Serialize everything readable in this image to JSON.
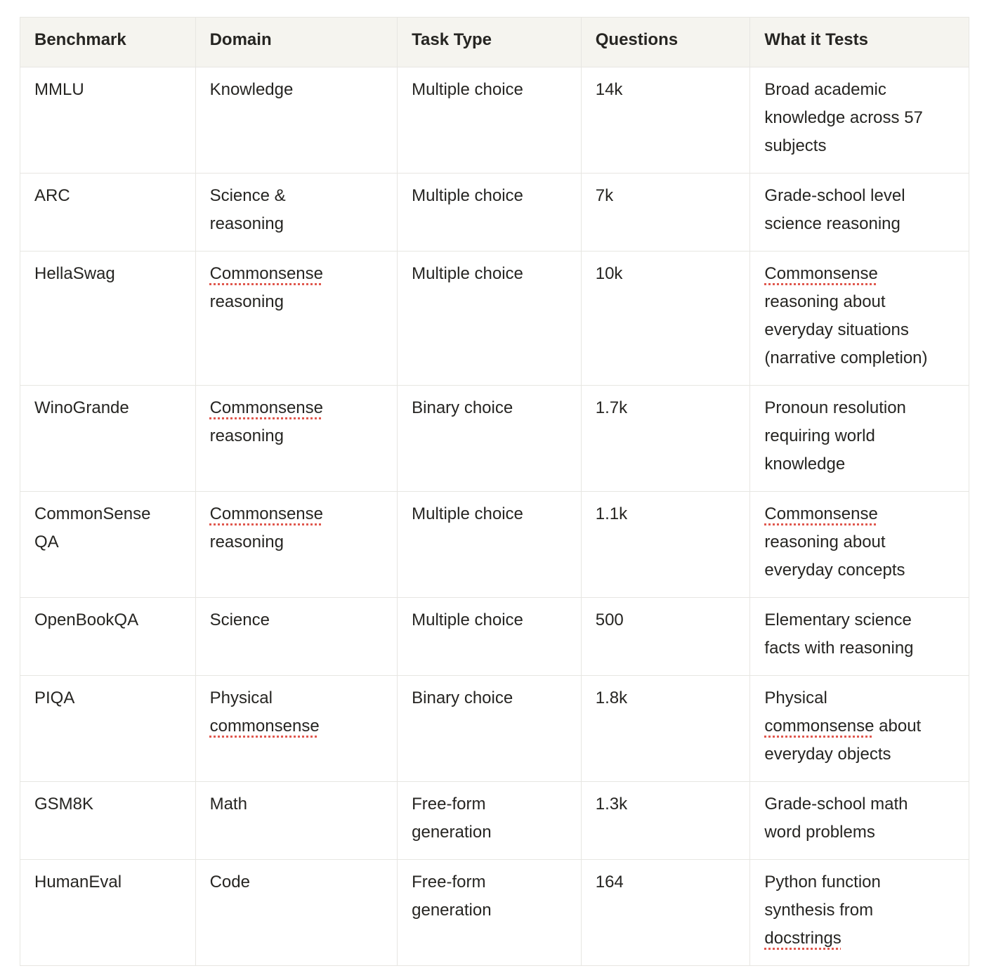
{
  "colors": {
    "page_background": "#ffffff",
    "header_background": "#f5f4ef",
    "cell_border": "#e7e6e2",
    "text": "#262522",
    "misspell_underline": "#e0584e"
  },
  "table": {
    "columns": [
      {
        "key": "benchmark",
        "label": "Benchmark"
      },
      {
        "key": "domain",
        "label": "Domain"
      },
      {
        "key": "task-type",
        "label": "Task Type"
      },
      {
        "key": "questions",
        "label": "Questions"
      },
      {
        "key": "what-it-tests",
        "label": "What it Tests"
      }
    ],
    "rows": [
      {
        "cells": [
          {
            "segments": [
              {
                "t": "MMLU"
              }
            ]
          },
          {
            "segments": [
              {
                "t": "Knowledge"
              }
            ]
          },
          {
            "segments": [
              {
                "t": "Multiple choice"
              }
            ]
          },
          {
            "segments": [
              {
                "t": "14k"
              }
            ]
          },
          {
            "segments": [
              {
                "t": "Broad academic\nknowledge across 57\nsubjects"
              }
            ]
          }
        ]
      },
      {
        "cells": [
          {
            "segments": [
              {
                "t": "ARC"
              }
            ]
          },
          {
            "segments": [
              {
                "t": "Science &\nreasoning"
              }
            ]
          },
          {
            "segments": [
              {
                "t": "Multiple choice"
              }
            ]
          },
          {
            "segments": [
              {
                "t": "7k"
              }
            ]
          },
          {
            "segments": [
              {
                "t": "Grade-school level\nscience reasoning"
              }
            ]
          }
        ]
      },
      {
        "cells": [
          {
            "segments": [
              {
                "t": "HellaSwag"
              }
            ]
          },
          {
            "segments": [
              {
                "t": "Commonsense",
                "u": true
              },
              {
                "t": "\nreasoning"
              }
            ]
          },
          {
            "segments": [
              {
                "t": "Multiple choice"
              }
            ]
          },
          {
            "segments": [
              {
                "t": "10k"
              }
            ]
          },
          {
            "segments": [
              {
                "t": "Commonsense",
                "u": true
              },
              {
                "t": "\nreasoning about\neveryday situations\n(narrative completion)"
              }
            ]
          }
        ]
      },
      {
        "cells": [
          {
            "segments": [
              {
                "t": "WinoGrande"
              }
            ]
          },
          {
            "segments": [
              {
                "t": "Commonsense",
                "u": true
              },
              {
                "t": "\nreasoning"
              }
            ]
          },
          {
            "segments": [
              {
                "t": "Binary choice"
              }
            ]
          },
          {
            "segments": [
              {
                "t": "1.7k"
              }
            ]
          },
          {
            "segments": [
              {
                "t": "Pronoun resolution\nrequiring world\nknowledge"
              }
            ]
          }
        ]
      },
      {
        "cells": [
          {
            "segments": [
              {
                "t": "CommonSense\nQA"
              }
            ]
          },
          {
            "segments": [
              {
                "t": "Commonsense",
                "u": true
              },
              {
                "t": "\nreasoning"
              }
            ]
          },
          {
            "segments": [
              {
                "t": "Multiple choice"
              }
            ]
          },
          {
            "segments": [
              {
                "t": "1.1k"
              }
            ]
          },
          {
            "segments": [
              {
                "t": "Commonsense",
                "u": true
              },
              {
                "t": "\nreasoning about\neveryday concepts"
              }
            ]
          }
        ]
      },
      {
        "cells": [
          {
            "segments": [
              {
                "t": "OpenBookQA"
              }
            ]
          },
          {
            "segments": [
              {
                "t": "Science"
              }
            ]
          },
          {
            "segments": [
              {
                "t": "Multiple choice"
              }
            ]
          },
          {
            "segments": [
              {
                "t": "500"
              }
            ]
          },
          {
            "segments": [
              {
                "t": "Elementary science\nfacts with reasoning"
              }
            ]
          }
        ]
      },
      {
        "cells": [
          {
            "segments": [
              {
                "t": "PIQA"
              }
            ]
          },
          {
            "segments": [
              {
                "t": "Physical\n"
              },
              {
                "t": "commonsense",
                "u": true
              }
            ]
          },
          {
            "segments": [
              {
                "t": "Binary choice"
              }
            ]
          },
          {
            "segments": [
              {
                "t": "1.8k"
              }
            ]
          },
          {
            "segments": [
              {
                "t": "Physical\n"
              },
              {
                "t": "commonsense",
                "u": true
              },
              {
                "t": " about\neveryday objects"
              }
            ]
          }
        ]
      },
      {
        "cells": [
          {
            "segments": [
              {
                "t": "GSM8K"
              }
            ]
          },
          {
            "segments": [
              {
                "t": "Math"
              }
            ]
          },
          {
            "segments": [
              {
                "t": "Free-form\ngeneration"
              }
            ]
          },
          {
            "segments": [
              {
                "t": "1.3k"
              }
            ]
          },
          {
            "segments": [
              {
                "t": "Grade-school math\nword problems"
              }
            ]
          }
        ]
      },
      {
        "cells": [
          {
            "segments": [
              {
                "t": "HumanEval"
              }
            ]
          },
          {
            "segments": [
              {
                "t": "Code"
              }
            ]
          },
          {
            "segments": [
              {
                "t": "Free-form\ngeneration"
              }
            ]
          },
          {
            "segments": [
              {
                "t": "164"
              }
            ]
          },
          {
            "segments": [
              {
                "t": "Python function\nsynthesis from\n"
              },
              {
                "t": "docstrings",
                "u": true
              }
            ]
          }
        ]
      }
    ]
  },
  "chart_data": {
    "type": "table",
    "title": "",
    "columns": [
      "Benchmark",
      "Domain",
      "Task Type",
      "Questions",
      "What it Tests"
    ],
    "rows": [
      [
        "MMLU",
        "Knowledge",
        "Multiple choice",
        "14k",
        "Broad academic knowledge across 57 subjects"
      ],
      [
        "ARC",
        "Science & reasoning",
        "Multiple choice",
        "7k",
        "Grade-school level science reasoning"
      ],
      [
        "HellaSwag",
        "Commonsense reasoning",
        "Multiple choice",
        "10k",
        "Commonsense reasoning about everyday situations (narrative completion)"
      ],
      [
        "WinoGrande",
        "Commonsense reasoning",
        "Binary choice",
        "1.7k",
        "Pronoun resolution requiring world knowledge"
      ],
      [
        "CommonSense QA",
        "Commonsense reasoning",
        "Multiple choice",
        "1.1k",
        "Commonsense reasoning about everyday concepts"
      ],
      [
        "OpenBookQA",
        "Science",
        "Multiple choice",
        "500",
        "Elementary science facts with reasoning"
      ],
      [
        "PIQA",
        "Physical commonsense",
        "Binary choice",
        "1.8k",
        "Physical commonsense about everyday objects"
      ],
      [
        "GSM8K",
        "Math",
        "Free-form generation",
        "1.3k",
        "Grade-school math word problems"
      ],
      [
        "HumanEval",
        "Code",
        "Free-form generation",
        "164",
        "Python function synthesis from docstrings"
      ]
    ]
  }
}
